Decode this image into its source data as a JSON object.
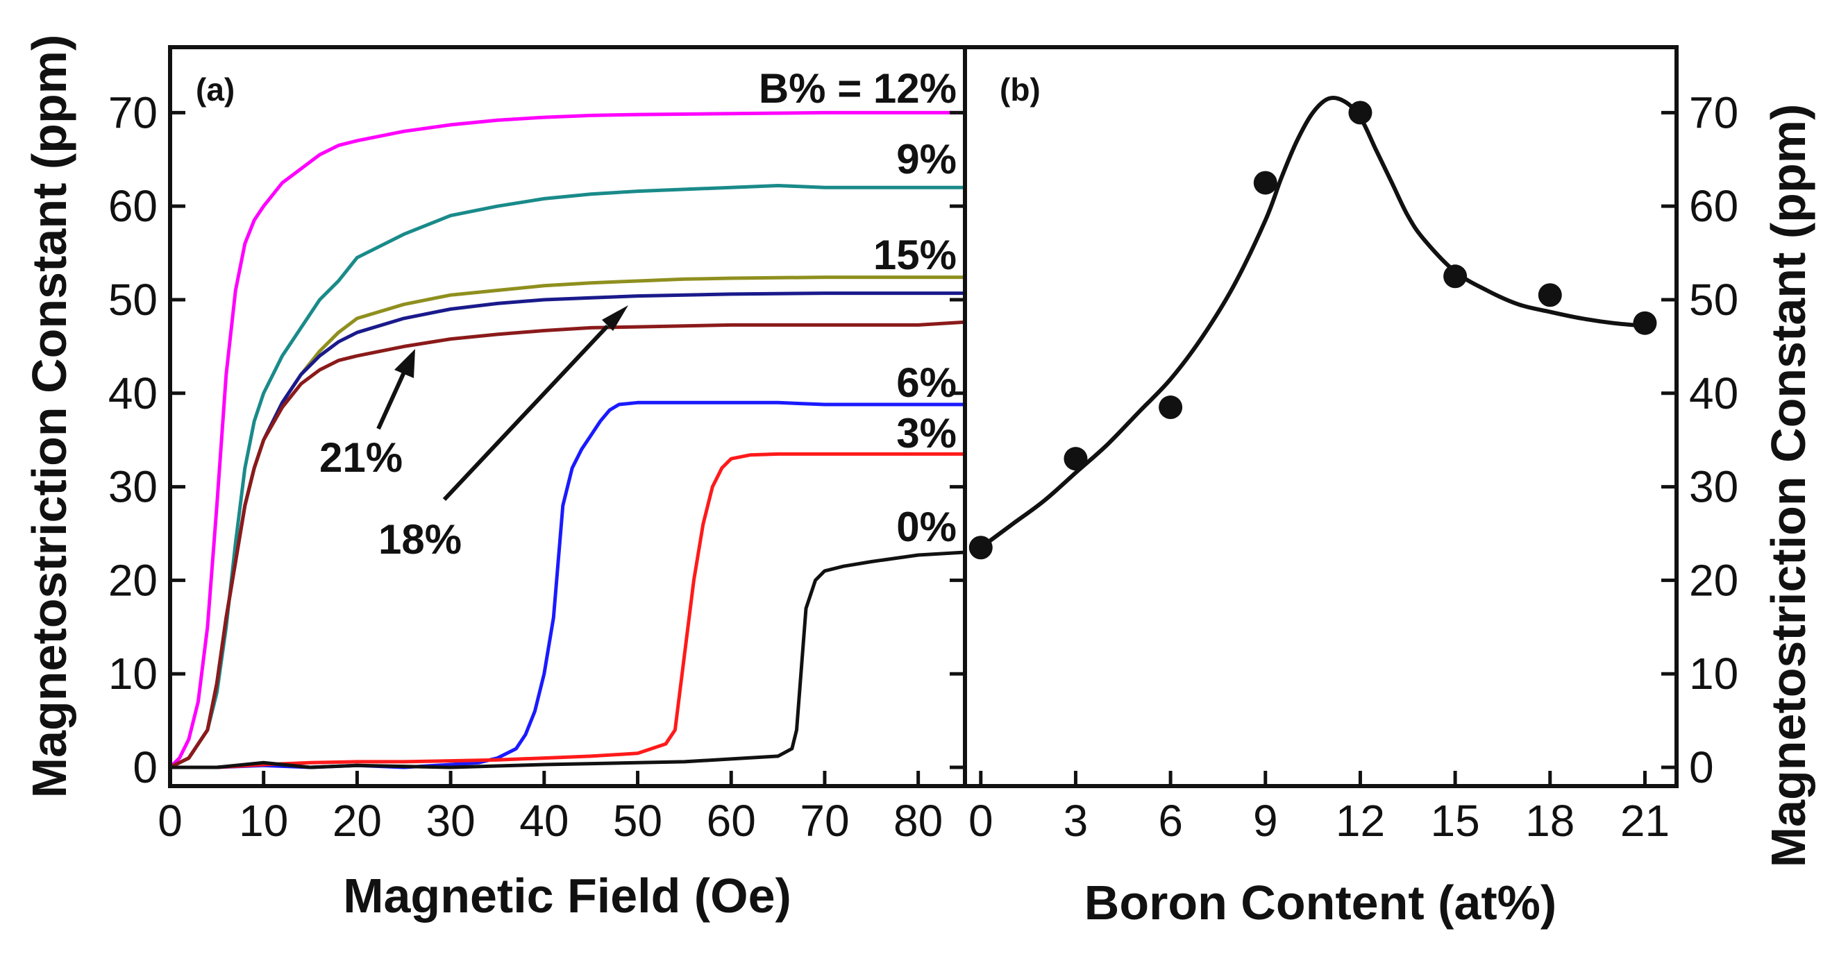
{
  "chart_data": [
    {
      "type": "line",
      "panel": "(a)",
      "xlabel": "Magnetic Field (Oe)",
      "ylabel": "Magnetostriction Constant (ppm)",
      "xlim": [
        0,
        85
      ],
      "ylim": [
        -2,
        77
      ],
      "xticks": [
        0,
        10,
        20,
        30,
        40,
        50,
        60,
        70,
        80
      ],
      "yticks": [
        0,
        10,
        20,
        30,
        40,
        50,
        60,
        70
      ],
      "series": [
        {
          "name": "12%",
          "label": "B% = 12%",
          "color": "#ff00ff",
          "x": [
            0,
            1,
            2,
            3,
            4,
            5,
            6,
            7,
            8,
            9,
            10,
            12,
            14,
            16,
            18,
            20,
            25,
            30,
            35,
            40,
            45,
            50,
            60,
            70,
            80,
            85
          ],
          "y": [
            0,
            1,
            3,
            7,
            15,
            28,
            42,
            51,
            56,
            58.5,
            60,
            62.5,
            64,
            65.5,
            66.5,
            67,
            68,
            68.7,
            69.2,
            69.5,
            69.7,
            69.8,
            69.9,
            70,
            70,
            70
          ]
        },
        {
          "name": "9%",
          "label": "9%",
          "color": "#1a8a8a",
          "x": [
            0,
            2,
            4,
            5,
            6,
            7,
            8,
            9,
            10,
            12,
            14,
            16,
            18,
            20,
            25,
            30,
            35,
            40,
            45,
            50,
            55,
            60,
            65,
            70,
            80,
            85
          ],
          "y": [
            0,
            1,
            4,
            8,
            15,
            24,
            32,
            37,
            40,
            44,
            47,
            50,
            52,
            54.5,
            57,
            59,
            60,
            60.8,
            61.3,
            61.6,
            61.8,
            62,
            62.2,
            62,
            62,
            62
          ]
        },
        {
          "name": "15%",
          "label": "15%",
          "color": "#8f8f1f",
          "x": [
            0,
            2,
            4,
            5,
            6,
            7,
            8,
            9,
            10,
            12,
            14,
            16,
            18,
            20,
            25,
            30,
            35,
            40,
            45,
            50,
            55,
            60,
            70,
            80,
            85
          ],
          "y": [
            0,
            1,
            4,
            9,
            16,
            22,
            28,
            32,
            35,
            39,
            42,
            44.5,
            46.5,
            48,
            49.5,
            50.5,
            51,
            51.5,
            51.8,
            52,
            52.2,
            52.3,
            52.4,
            52.4,
            52.4
          ]
        },
        {
          "name": "18%",
          "label": "18%",
          "color": "#1a1a8c",
          "x": [
            0,
            2,
            4,
            5,
            6,
            7,
            8,
            9,
            10,
            12,
            14,
            16,
            18,
            20,
            25,
            30,
            35,
            40,
            45,
            50,
            55,
            60,
            70,
            80,
            85
          ],
          "y": [
            0,
            1,
            4,
            9,
            16,
            22,
            28,
            32,
            35,
            39,
            42,
            44,
            45.5,
            46.5,
            48,
            49,
            49.6,
            50,
            50.2,
            50.4,
            50.5,
            50.6,
            50.7,
            50.7,
            50.7
          ]
        },
        {
          "name": "21%",
          "label": "21%",
          "color": "#8b1a1a",
          "x": [
            0,
            2,
            4,
            5,
            6,
            7,
            8,
            9,
            10,
            12,
            14,
            16,
            18,
            20,
            25,
            30,
            35,
            40,
            45,
            50,
            55,
            60,
            70,
            80,
            85
          ],
          "y": [
            0,
            1,
            4,
            9,
            16,
            22,
            28,
            32,
            35,
            38.5,
            41,
            42.5,
            43.5,
            44,
            45,
            45.8,
            46.3,
            46.7,
            47,
            47.1,
            47.2,
            47.3,
            47.3,
            47.3,
            47.6
          ]
        },
        {
          "name": "6%",
          "label": "6%",
          "color": "#1a1aff",
          "x": [
            0,
            5,
            10,
            15,
            20,
            25,
            30,
            33,
            35,
            37,
            38,
            39,
            40,
            41,
            42,
            43,
            44,
            45,
            46,
            47,
            48,
            50,
            55,
            60,
            65,
            70,
            80,
            85
          ],
          "y": [
            0,
            0,
            0.2,
            0,
            0.2,
            0,
            0.3,
            0.5,
            1,
            2,
            3.5,
            6,
            10,
            16,
            28,
            32,
            34,
            35.5,
            37,
            38.2,
            38.8,
            39,
            39,
            39,
            39,
            38.8,
            38.8,
            38.8
          ]
        },
        {
          "name": "3%",
          "label": "3%",
          "color": "#ff1a1a",
          "x": [
            0,
            5,
            10,
            15,
            20,
            25,
            30,
            35,
            40,
            45,
            50,
            53,
            54,
            55,
            56,
            57,
            58,
            59,
            60,
            62,
            65,
            70,
            80,
            85
          ],
          "y": [
            0,
            0,
            0.3,
            0.5,
            0.6,
            0.6,
            0.7,
            0.8,
            1,
            1.2,
            1.5,
            2.5,
            4,
            12,
            20,
            26,
            30,
            32,
            33,
            33.4,
            33.5,
            33.5,
            33.5,
            33.5
          ]
        },
        {
          "name": "0%",
          "label": "0%",
          "color": "#111111",
          "x": [
            0,
            5,
            10,
            15,
            20,
            30,
            40,
            50,
            55,
            60,
            65,
            66.5,
            67,
            68,
            69,
            70,
            72,
            75,
            80,
            85
          ],
          "y": [
            0,
            0,
            0.5,
            0,
            0.2,
            0,
            0.3,
            0.5,
            0.6,
            0.9,
            1.2,
            2,
            4,
            17,
            20,
            21,
            21.5,
            22,
            22.7,
            23
          ]
        }
      ],
      "annotations": [
        {
          "text": "21%",
          "target": "21%"
        },
        {
          "text": "18%",
          "target": "18%"
        }
      ]
    },
    {
      "type": "scatter",
      "panel": "(b)",
      "xlabel": "Boron Content (at%)",
      "ylabel": "Magnetostriction Constant (ppm)",
      "xlim": [
        -0.5,
        22
      ],
      "ylim": [
        -2,
        77
      ],
      "xticks": [
        0,
        3,
        6,
        9,
        12,
        15,
        18,
        21
      ],
      "yticks": [
        0,
        10,
        20,
        30,
        40,
        50,
        60,
        70
      ],
      "points": {
        "x": [
          0,
          3,
          6,
          9,
          12,
          15,
          18,
          21
        ],
        "y": [
          23.5,
          33,
          38.5,
          62.5,
          70,
          52.5,
          50.5,
          47.5
        ]
      },
      "fit_curve": {
        "x": [
          0,
          1,
          2,
          3,
          4,
          5,
          6,
          7,
          8,
          9,
          9.5,
          10,
          10.5,
          11,
          11.5,
          12,
          12.5,
          13,
          13.5,
          14,
          15,
          16,
          17,
          18,
          19,
          20,
          21
        ],
        "y": [
          23.5,
          26,
          28.5,
          31.5,
          34.5,
          38,
          41.5,
          46,
          51.5,
          58.5,
          63,
          67,
          70,
          71.5,
          71.2,
          69.5,
          66,
          62.5,
          59,
          56.5,
          53,
          51,
          49.5,
          48.7,
          48,
          47.5,
          47.2
        ]
      }
    }
  ]
}
